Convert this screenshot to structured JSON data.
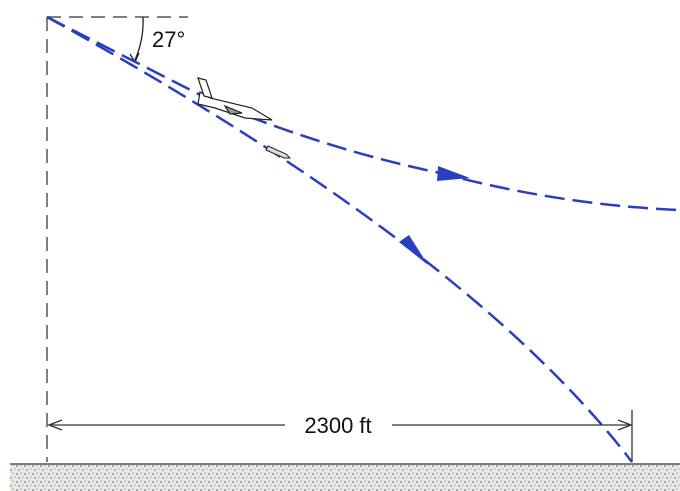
{
  "annotations": {
    "angle": "27°",
    "distance": "2300 ft"
  }
}
